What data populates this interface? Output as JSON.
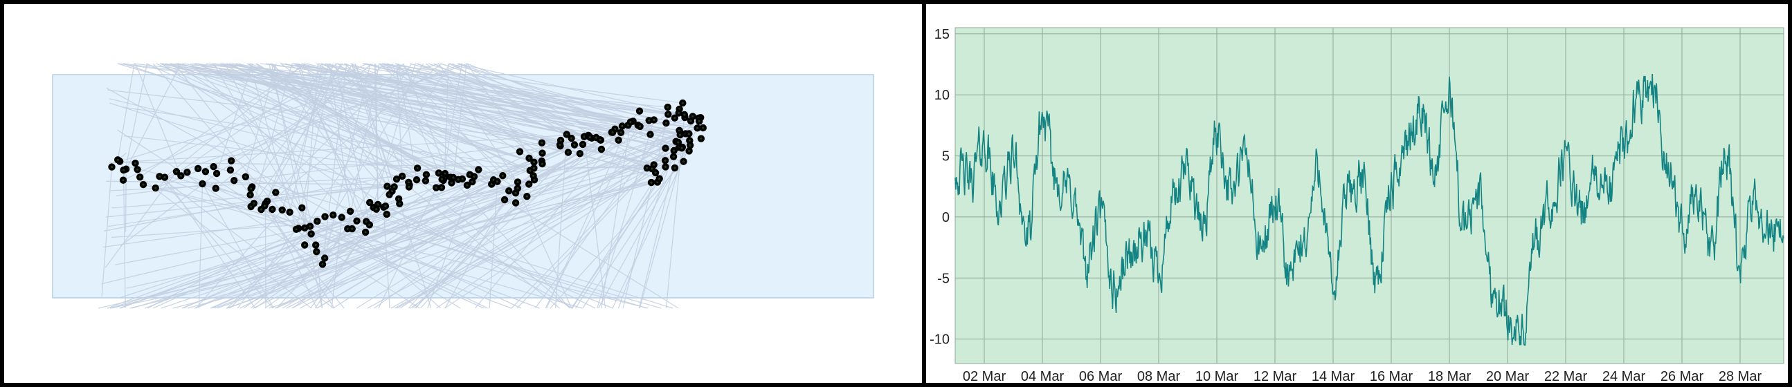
{
  "colors": {
    "left_background": "#ffffff",
    "region_fill": "#e3f1fc",
    "region_stroke": "#b6cde0",
    "link_stroke": "#c2cfe0",
    "node_fill": "#5e9b52",
    "node_center": "#1e3a1a",
    "plot_background": "#cdebd6",
    "grid": "#8fa898",
    "series_line": "#138483",
    "axis_text": "#222222"
  },
  "chart_data": [
    {
      "type": "scatter",
      "description": "node-link layout: green nodes along a curved band with many pale-blue connecting lines inside a light-blue region",
      "grid": false,
      "legend": "none",
      "node_count": 200,
      "node_color": "#5e9b52",
      "link_color": "#c2cfe0",
      "region_color": "#e3f1fc"
    },
    {
      "type": "line",
      "title": "",
      "xlabel": "",
      "ylabel": "",
      "x_range": [
        "2025-03-01",
        "2025-03-29"
      ],
      "ylim": [
        -12,
        15.5
      ],
      "yticks": [
        -10,
        -5,
        0,
        5,
        10,
        15
      ],
      "xticks": [
        "02 Mar",
        "04 Mar",
        "06 Mar",
        "08 Mar",
        "10 Mar",
        "12 Mar",
        "14 Mar",
        "16 Mar",
        "18 Mar",
        "20 Mar",
        "22 Mar",
        "24 Mar",
        "26 Mar",
        "28 Mar"
      ],
      "grid": true,
      "legend": "none",
      "series": [
        {
          "color": "#138483",
          "x": [
            "2025-03-01 00:00",
            "2025-03-01 12:00",
            "2025-03-02 00:00",
            "2025-03-02 12:00",
            "2025-03-03 00:00",
            "2025-03-03 12:00",
            "2025-03-04 00:00",
            "2025-03-04 12:00",
            "2025-03-05 00:00",
            "2025-03-05 12:00",
            "2025-03-06 00:00",
            "2025-03-06 12:00",
            "2025-03-07 00:00",
            "2025-03-07 12:00",
            "2025-03-08 00:00",
            "2025-03-08 12:00",
            "2025-03-09 00:00",
            "2025-03-09 12:00",
            "2025-03-10 00:00",
            "2025-03-10 12:00",
            "2025-03-11 00:00",
            "2025-03-11 12:00",
            "2025-03-12 00:00",
            "2025-03-12 12:00",
            "2025-03-13 00:00",
            "2025-03-13 12:00",
            "2025-03-14 00:00",
            "2025-03-14 12:00",
            "2025-03-15 00:00",
            "2025-03-15 12:00",
            "2025-03-16 00:00",
            "2025-03-16 12:00",
            "2025-03-17 00:00",
            "2025-03-17 12:00",
            "2025-03-18 00:00",
            "2025-03-18 12:00",
            "2025-03-19 00:00",
            "2025-03-19 12:00",
            "2025-03-20 00:00",
            "2025-03-20 12:00",
            "2025-03-21 00:00",
            "2025-03-21 12:00",
            "2025-03-22 00:00",
            "2025-03-22 12:00",
            "2025-03-23 00:00",
            "2025-03-23 12:00",
            "2025-03-24 00:00",
            "2025-03-24 12:00",
            "2025-03-25 00:00",
            "2025-03-25 12:00",
            "2025-03-26 00:00",
            "2025-03-26 12:00",
            "2025-03-27 00:00",
            "2025-03-27 12:00",
            "2025-03-28 00:00",
            "2025-03-28 12:00",
            "2025-03-29 00:00"
          ],
          "values": [
            4,
            3,
            6,
            1,
            5,
            -2,
            8,
            3,
            2,
            -4,
            0,
            -6,
            -3,
            -2,
            -4,
            1,
            4,
            -1,
            7,
            2,
            5,
            -3,
            1,
            -5,
            -2,
            4,
            -6,
            2,
            3,
            -5,
            2,
            6,
            9,
            4,
            10,
            -1,
            2,
            -6,
            -8,
            -10,
            -2,
            1,
            5,
            0,
            3,
            2,
            6,
            10,
            11,
            4,
            -1,
            2,
            -3,
            5,
            -4,
            1,
            -1
          ]
        }
      ]
    }
  ]
}
